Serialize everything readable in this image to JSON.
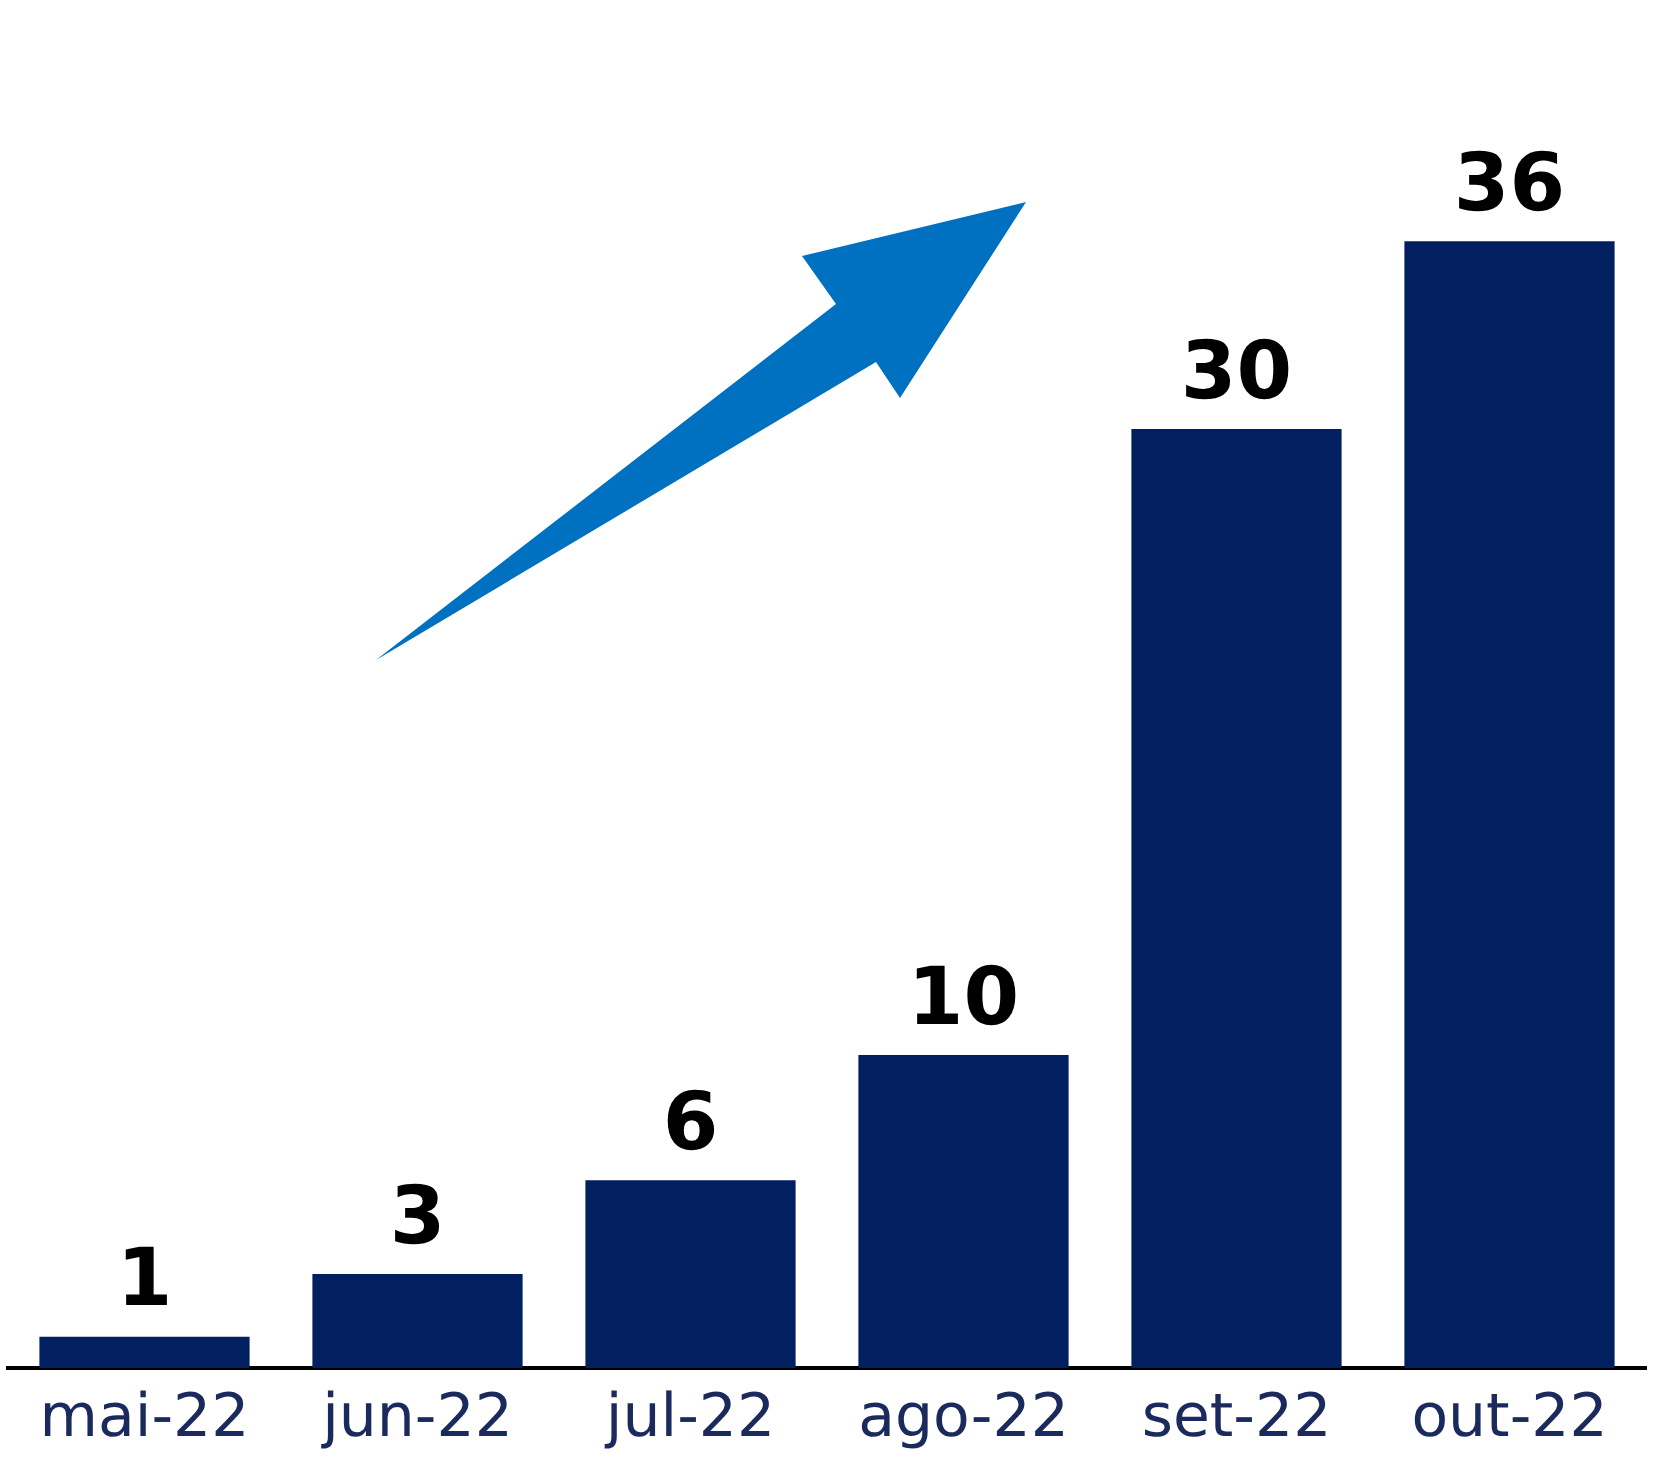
{
  "chart_data": {
    "type": "bar",
    "categories": [
      "mai-22",
      "jun-22",
      "jul-22",
      "ago-22",
      "set-22",
      "out-22"
    ],
    "values": [
      1,
      3,
      6,
      10,
      30,
      36
    ],
    "color": "#02205f",
    "data_labels": true,
    "grid": false,
    "legend": false
  }
}
